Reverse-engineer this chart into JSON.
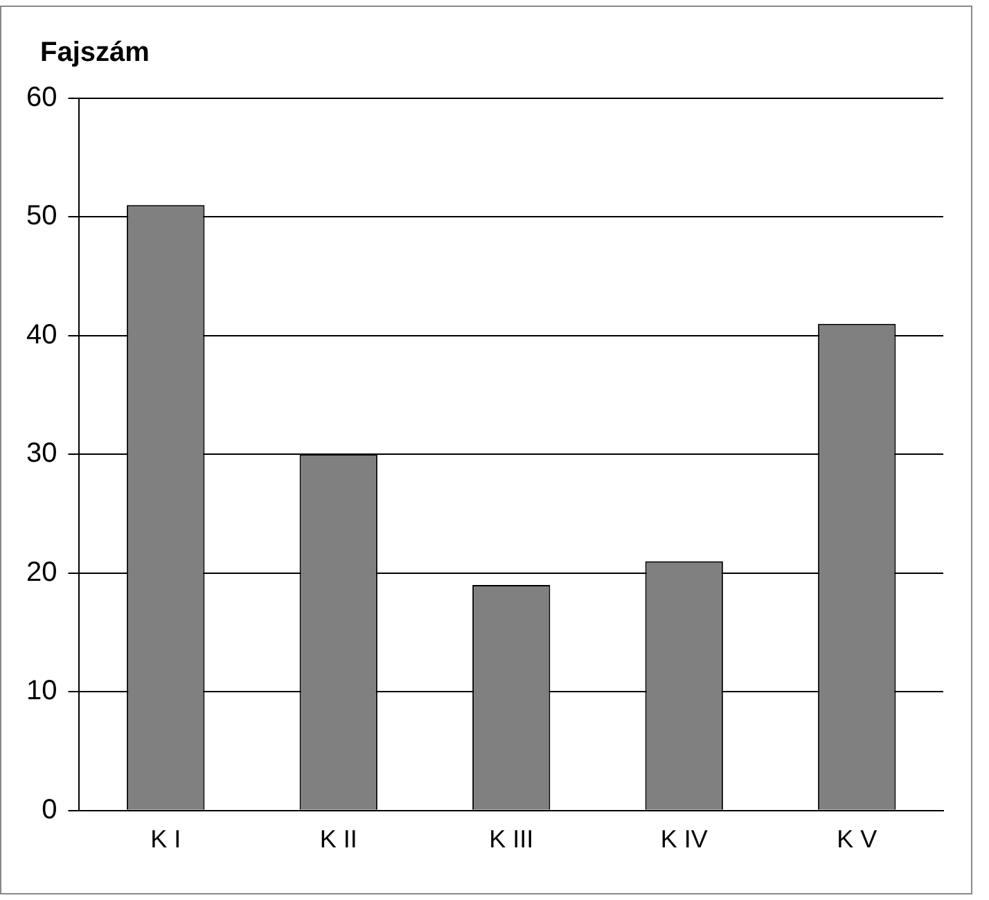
{
  "chart_data": {
    "type": "bar",
    "title": "Fajszám",
    "categories": [
      "K I",
      "K II",
      "K III",
      "K IV",
      "K V"
    ],
    "values": [
      51,
      30,
      19,
      21,
      41
    ],
    "color": "#808080",
    "ylim": [
      0,
      60
    ],
    "yticks": [
      0,
      10,
      20,
      30,
      40,
      50,
      60
    ],
    "grid": "y",
    "legend": false
  }
}
